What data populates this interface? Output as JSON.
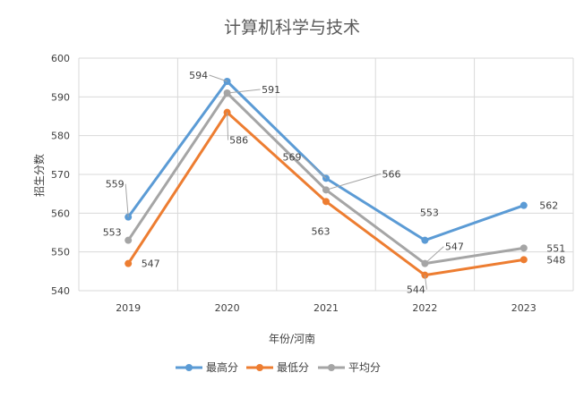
{
  "chart_data": {
    "type": "line",
    "title": "计算机科学与技术",
    "xlabel": "年份/河南",
    "ylabel": "招生分数",
    "categories": [
      "2019",
      "2020",
      "2021",
      "2022",
      "2023"
    ],
    "ylim": [
      540,
      600
    ],
    "yticks": [
      540,
      550,
      560,
      570,
      580,
      590,
      600
    ],
    "grid": "horizontal and vertical",
    "legend_position": "bottom",
    "series": [
      {
        "name": "最高分",
        "color": "#5B9BD5",
        "values": [
          559,
          594,
          569,
          553,
          562
        ]
      },
      {
        "name": "最低分",
        "color": "#ED7D31",
        "values": [
          547,
          586,
          563,
          544,
          548
        ]
      },
      {
        "name": "平均分",
        "color": "#A5A5A5",
        "values": [
          553,
          591,
          566,
          547,
          551
        ]
      }
    ]
  }
}
